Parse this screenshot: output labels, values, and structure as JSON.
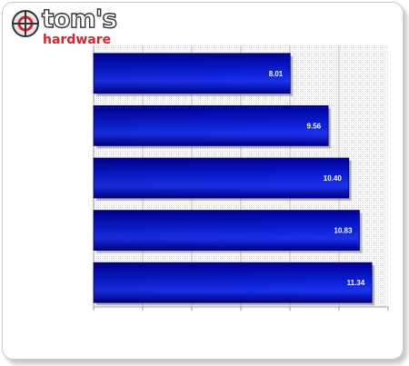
{
  "logo": {
    "line1": "tom's",
    "line2": "hardware"
  },
  "colors": {
    "bar_dark": "#00009a",
    "bar_mid": "#0b1fd8",
    "bar_light": "#3046ff",
    "label": "#ffffff",
    "logo_red": "#d8252c"
  },
  "chart_data": {
    "type": "bar",
    "orientation": "horizontal",
    "categories": [
      "",
      "",
      "",
      "",
      ""
    ],
    "values": [
      8.01,
      9.56,
      10.4,
      10.83,
      11.34
    ],
    "value_labels": [
      "8.01",
      "9.56",
      "10.40",
      "10.83",
      "11.34"
    ],
    "title": "",
    "xlabel": "",
    "ylabel": "",
    "xlim": [
      0,
      12
    ],
    "grid": true
  }
}
